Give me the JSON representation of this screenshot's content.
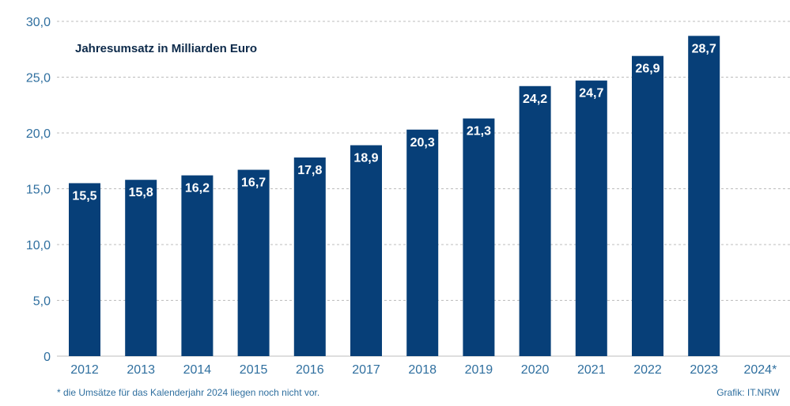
{
  "chart_data": {
    "type": "bar",
    "title": "Jahresumsatz in Milliarden Euro",
    "xlabel": "",
    "ylabel": "",
    "categories": [
      "2012",
      "2013",
      "2014",
      "2015",
      "2016",
      "2017",
      "2018",
      "2019",
      "2020",
      "2021",
      "2022",
      "2023",
      "2024*"
    ],
    "values": [
      15.5,
      15.8,
      16.2,
      16.7,
      17.8,
      18.9,
      20.3,
      21.3,
      24.2,
      24.7,
      26.9,
      28.7,
      null
    ],
    "value_labels": [
      "15,5",
      "15,8",
      "16,2",
      "16,7",
      "17,8",
      "18,9",
      "20,3",
      "21,3",
      "24,2",
      "24,7",
      "26,9",
      "28,7",
      ""
    ],
    "ylim": [
      0,
      30
    ],
    "yticks": [
      0,
      5,
      10,
      15,
      20,
      25,
      30
    ],
    "ytick_labels": [
      "0",
      "5,0",
      "10,0",
      "15,0",
      "20,0",
      "25,0",
      "30,0"
    ],
    "grid": true,
    "colors": {
      "bar": "#073f78",
      "grid": "#bcbcbc",
      "axis_text": "#2f6f9f",
      "title": "#0d2a4a"
    }
  },
  "footnote": "*  die Umsätze für das Kalenderjahr 2024 liegen noch nicht vor.",
  "source": "Grafik: IT.NRW"
}
